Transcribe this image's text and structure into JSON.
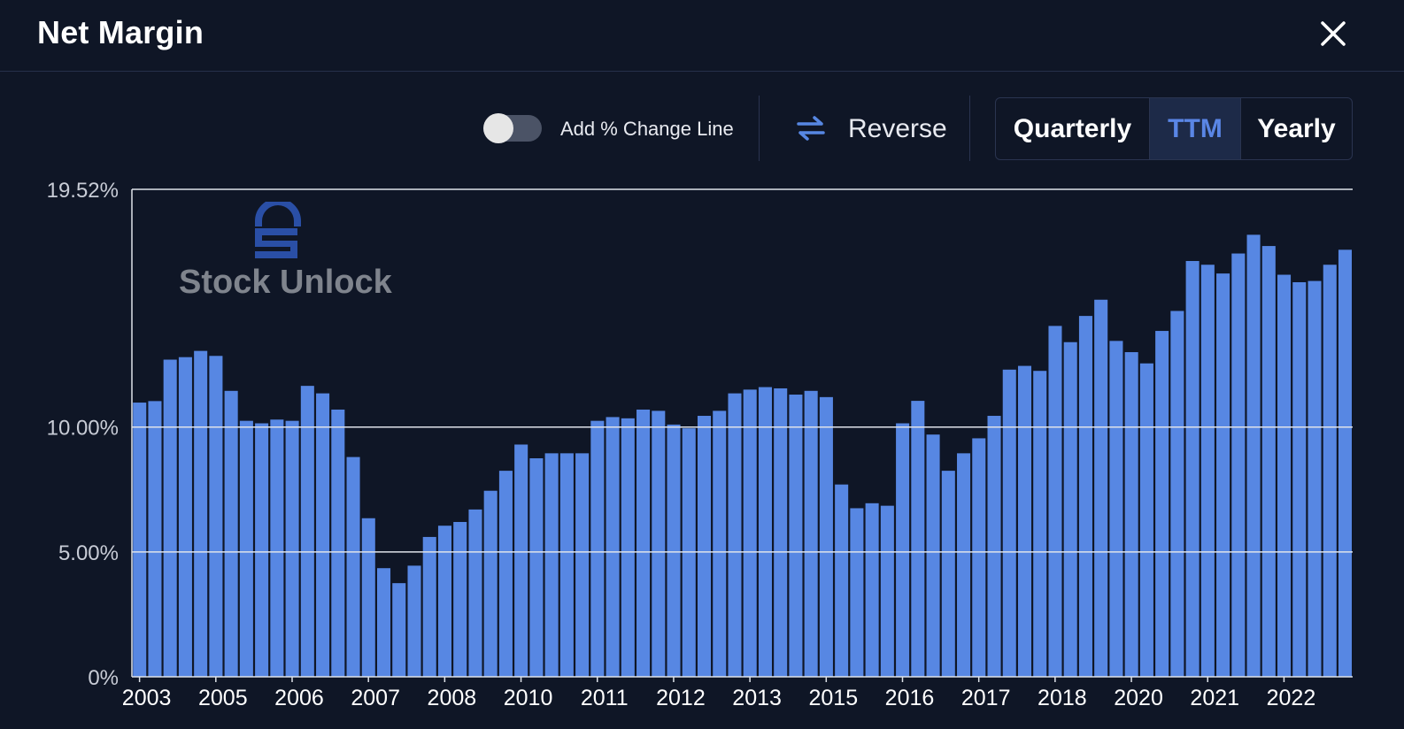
{
  "header": {
    "title": "Net Margin"
  },
  "toolbar": {
    "toggle_label": "Add % Change Line",
    "toggle_on": false,
    "reverse_label": "Reverse",
    "periods": [
      "Quarterly",
      "TTM",
      "Yearly"
    ],
    "selected_period": "TTM"
  },
  "watermark": {
    "text": "Stock Unlock"
  },
  "colors": {
    "background": "#0f1626",
    "bar": "#5787e3",
    "accent": "#5a86e6",
    "gridline": "#dfe3ea"
  },
  "chart_data": {
    "type": "bar",
    "title": "",
    "xlabel": "",
    "ylabel": "",
    "ylim": [
      0,
      19.52
    ],
    "y_ticks": [
      {
        "value": 0,
        "label": "0%"
      },
      {
        "value": 5,
        "label": "5.00%"
      },
      {
        "value": 10,
        "label": "10.00%"
      },
      {
        "value": 19.52,
        "label": "19.52%"
      }
    ],
    "x_tick_labels": [
      {
        "label": "2003",
        "index": 0
      },
      {
        "label": "2005",
        "index": 5
      },
      {
        "label": "2006",
        "index": 10
      },
      {
        "label": "2007",
        "index": 15
      },
      {
        "label": "2008",
        "index": 20
      },
      {
        "label": "2010",
        "index": 25
      },
      {
        "label": "2011",
        "index": 30
      },
      {
        "label": "2012",
        "index": 35
      },
      {
        "label": "2013",
        "index": 40
      },
      {
        "label": "2015",
        "index": 45
      },
      {
        "label": "2016",
        "index": 50
      },
      {
        "label": "2017",
        "index": 55
      },
      {
        "label": "2018",
        "index": 60
      },
      {
        "label": "2020",
        "index": 65
      },
      {
        "label": "2021",
        "index": 70
      },
      {
        "label": "2022",
        "index": 75
      }
    ],
    "grid": true,
    "series": [
      {
        "values": [
          10.98,
          11.04,
          12.7,
          12.8,
          13.05,
          12.85,
          11.45,
          10.25,
          10.15,
          10.3,
          10.25,
          11.65,
          11.35,
          10.7,
          8.8,
          6.35,
          4.35,
          3.75,
          4.45,
          5.6,
          6.05,
          6.2,
          6.7,
          7.45,
          8.25,
          9.3,
          8.75,
          8.95,
          8.95,
          8.95,
          10.25,
          10.4,
          10.35,
          10.7,
          10.65,
          10.1,
          9.95,
          10.45,
          10.65,
          11.35,
          11.5,
          11.6,
          11.55,
          11.3,
          11.45,
          11.2,
          7.7,
          6.75,
          6.95,
          6.85,
          10.15,
          11.05,
          9.7,
          8.25,
          8.95,
          9.55,
          10.45,
          12.3,
          12.45,
          12.25,
          14.05,
          13.4,
          14.45,
          15.1,
          13.45,
          13.0,
          12.55,
          13.85,
          14.65,
          16.65,
          16.5,
          16.15,
          16.95,
          17.7,
          17.25,
          16.1,
          15.8,
          15.85,
          16.5,
          17.1
        ]
      }
    ]
  }
}
